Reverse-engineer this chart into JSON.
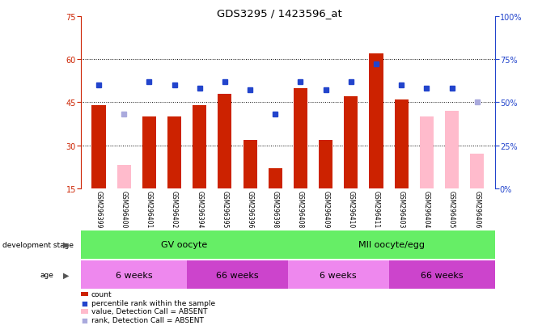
{
  "title": "GDS3295 / 1423596_at",
  "samples": [
    "GSM296399",
    "GSM296400",
    "GSM296401",
    "GSM296402",
    "GSM296394",
    "GSM296395",
    "GSM296396",
    "GSM296398",
    "GSM296408",
    "GSM296409",
    "GSM296410",
    "GSM296411",
    "GSM296403",
    "GSM296404",
    "GSM296405",
    "GSM296406"
  ],
  "count_values": [
    44,
    23,
    40,
    40,
    44,
    48,
    32,
    22,
    50,
    32,
    47,
    62,
    46,
    40,
    42,
    27
  ],
  "count_absent": [
    false,
    true,
    false,
    false,
    false,
    false,
    false,
    false,
    false,
    false,
    false,
    false,
    false,
    true,
    true,
    true
  ],
  "percentile_values": [
    60,
    43,
    62,
    60,
    58,
    62,
    57,
    43,
    62,
    57,
    62,
    72,
    60,
    58,
    58,
    50
  ],
  "percentile_absent": [
    false,
    true,
    false,
    false,
    false,
    false,
    false,
    false,
    false,
    false,
    false,
    false,
    false,
    false,
    false,
    true
  ],
  "ylim_left": [
    15,
    75
  ],
  "ylim_right": [
    0,
    100
  ],
  "yticks_left": [
    15,
    30,
    45,
    60,
    75
  ],
  "yticks_right": [
    0,
    25,
    50,
    75,
    100
  ],
  "ytick_labels_right": [
    "0%",
    "25%",
    "50%",
    "75%",
    "100%"
  ],
  "hgrid_lines": [
    30,
    45,
    60
  ],
  "bar_color_present": "#cc2200",
  "bar_color_absent": "#ffbbcc",
  "dot_color_present": "#2244cc",
  "dot_color_absent": "#aaaadd",
  "bar_width": 0.55,
  "background_color": "#ffffff",
  "label_color_left": "#cc2200",
  "label_color_right": "#2244cc",
  "gv_color": "#66ee66",
  "mii_color": "#66ee66",
  "age_color_light": "#ee88ee",
  "age_color_dark": "#cc44cc",
  "legend_items": [
    {
      "color": "#cc2200",
      "type": "rect",
      "label": "count"
    },
    {
      "color": "#2244cc",
      "type": "square",
      "label": "percentile rank within the sample"
    },
    {
      "color": "#ffbbcc",
      "type": "rect",
      "label": "value, Detection Call = ABSENT"
    },
    {
      "color": "#aaaadd",
      "type": "square",
      "label": "rank, Detection Call = ABSENT"
    }
  ]
}
